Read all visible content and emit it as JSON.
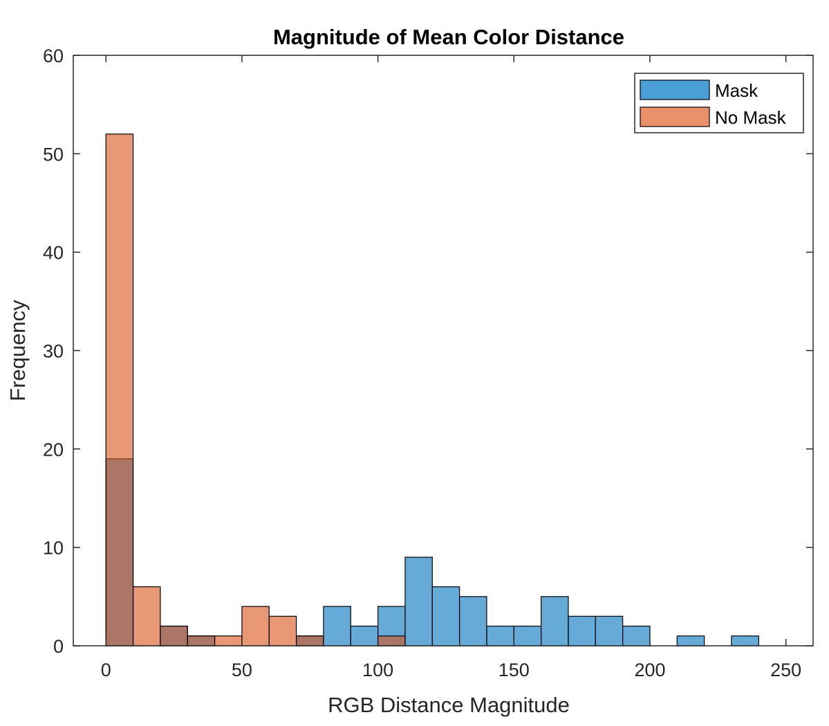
{
  "chart_data": {
    "type": "bar",
    "title": "Magnitude of Mean Color Distance",
    "xlabel": "RGB Distance Magnitude",
    "ylabel": "Frequency",
    "xlim": [
      -12,
      260
    ],
    "ylim": [
      0,
      60
    ],
    "xticks": [
      0,
      50,
      100,
      150,
      200,
      250
    ],
    "yticks": [
      0,
      10,
      20,
      30,
      40,
      50,
      60
    ],
    "bin_width": 10,
    "legend_position": "top-right",
    "grid": false,
    "series": [
      {
        "name": "Mask",
        "color": "#0072BD",
        "bins": [
          {
            "x": 0,
            "value": 19
          },
          {
            "x": 10,
            "value": 0
          },
          {
            "x": 20,
            "value": 2
          },
          {
            "x": 30,
            "value": 1
          },
          {
            "x": 40,
            "value": 0
          },
          {
            "x": 50,
            "value": 0
          },
          {
            "x": 60,
            "value": 0
          },
          {
            "x": 70,
            "value": 1
          },
          {
            "x": 80,
            "value": 4
          },
          {
            "x": 90,
            "value": 2
          },
          {
            "x": 100,
            "value": 4
          },
          {
            "x": 110,
            "value": 9
          },
          {
            "x": 120,
            "value": 6
          },
          {
            "x": 130,
            "value": 5
          },
          {
            "x": 140,
            "value": 2
          },
          {
            "x": 150,
            "value": 2
          },
          {
            "x": 160,
            "value": 5
          },
          {
            "x": 170,
            "value": 3
          },
          {
            "x": 180,
            "value": 3
          },
          {
            "x": 190,
            "value": 2
          },
          {
            "x": 200,
            "value": 0
          },
          {
            "x": 210,
            "value": 1
          },
          {
            "x": 220,
            "value": 0
          },
          {
            "x": 230,
            "value": 1
          }
        ]
      },
      {
        "name": "No Mask",
        "color": "#D95319",
        "bins": [
          {
            "x": 0,
            "value": 52
          },
          {
            "x": 10,
            "value": 6
          },
          {
            "x": 20,
            "value": 2
          },
          {
            "x": 30,
            "value": 1
          },
          {
            "x": 40,
            "value": 1
          },
          {
            "x": 50,
            "value": 4
          },
          {
            "x": 60,
            "value": 3
          },
          {
            "x": 70,
            "value": 1
          },
          {
            "x": 80,
            "value": 0
          },
          {
            "x": 90,
            "value": 0
          },
          {
            "x": 100,
            "value": 1
          }
        ]
      }
    ]
  }
}
